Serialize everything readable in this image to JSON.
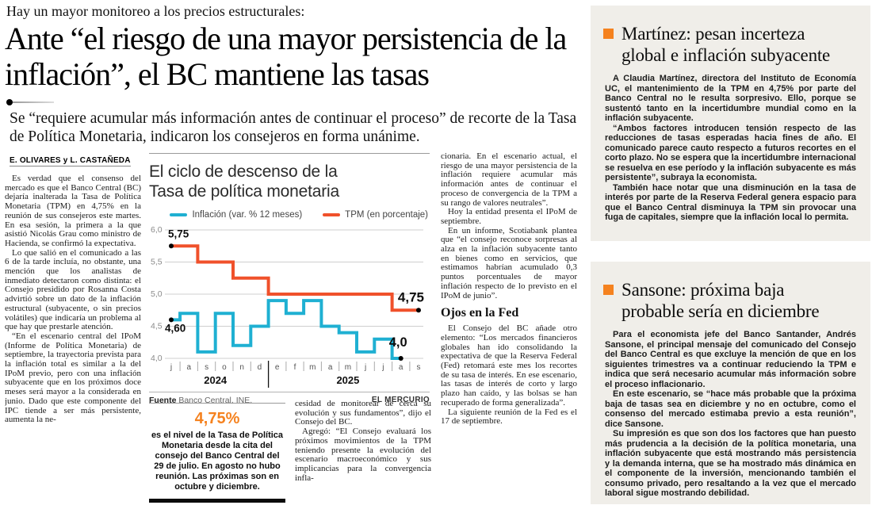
{
  "kicker": "Hay un mayor monitoreo a los precios estructurales:",
  "headline": "Ante “el riesgo de una mayor persistencia de la inflación”, el BC mantiene las tasas",
  "subheadline": "Se “requiere acumular más información antes de continuar el proceso” de recorte de la Tasa de Política Monetaria, indicaron los consejeros en forma unánime.",
  "byline": "E. OLIVARES y L. CASTAÑEDA",
  "article": {
    "col1": [
      "Es verdad que el consenso del mercado es que el Banco Central (BC) dejaría inalterada la Tasa de Política Monetaria (TPM) en 4,75% en la reunión de sus consejeros este martes. En esa sesión, la primera a la que asistió Nicolás Grau como ministro de Hacienda, se confirmó la expectativa.",
      "Lo que salió en el comunicado a las 6 de la tarde incluía, no obstante, una mención que los analistas de inmediato detectaron como distinta: el Consejo presidido por Rosanna Costa advirtió sobre un dato de la inflación estructural (subyacente, o sin precios volátiles) que indicaría un problema al que hay que prestarle atención.",
      "“En el escenario central del IPoM (Informe de Política Monetaria) de septiembre, la trayectoria prevista para la inflación total es similar a la del IPoM previo, pero con una inflación subyacente que en los próximos doce meses será mayor a la considerada en junio. Dado que este componente del IPC tiende a ser más persistente, aumenta la ne-"
    ],
    "col3": [
      "cesidad de monitorear de cerca su evolución y sus fundamentos”, dijo el Consejo del BC.",
      "Agregó: “El Consejo evaluará los próximos movimientos de la TPM teniendo presente la evolución del escenario macroeconómico y sus implicancias para la convergencia infla-"
    ],
    "col4_top": [
      "cionaria. En el escenario actual, el riesgo de una mayor persistencia de la inflación requiere acumular más información antes de continuar el proceso de convergencia de la TPM a su rango de valores neutrales”.",
      "Hoy la entidad presenta el IPoM de septiembre.",
      "En un informe, Scotiabank plantea que “el consejo reconoce sorpresas al alza en la inflación subyacente tanto en bienes como en servicios, que estimamos habrían acumulado 0,3 puntos porcentuales de mayor inflación respecto de lo previsto en el IPoM de junio”."
    ],
    "section_head": "Ojos en la Fed",
    "col4_bottom": [
      "El Consejo del BC añade otro elemento: “Los mercados financieros globales han ido consolidando la expectativa de que la Reserva Federal (Fed) retomará este mes los recortes de su tasa de interés. En ese escenario, las tasas de interés de corto y largo plazo han caído, y las bolsas se han recuperado de forma generalizada”.",
      "La siguiente reunión de la Fed es el 17 de septiembre."
    ]
  },
  "infobox": {
    "figure": "4,75%",
    "text": "es el nivel de la Tasa de Política Monetaria desde la cita del consejo del Banco Central del 29 de julio. En agosto no hubo reunión. Las próximas son en octubre y diciembre."
  },
  "chart_data": {
    "type": "line",
    "title": "El ciclo de descenso de la\nTasa de política monetaria",
    "x": [
      "j",
      "a",
      "s",
      "o",
      "n",
      "d",
      "e",
      "f",
      "m",
      "a",
      "m",
      "j",
      "j",
      "a",
      "s"
    ],
    "year_groups": [
      {
        "label": "2024",
        "from": 0,
        "to": 5
      },
      {
        "label": "2025",
        "from": 6,
        "to": 14
      }
    ],
    "ylim": [
      4.0,
      6.0
    ],
    "yticks": [
      6.0,
      5.5,
      5.0,
      4.5,
      4.0
    ],
    "ytick_labels": [
      "6,0",
      "5,5",
      "5,0",
      "4,5",
      "4,0"
    ],
    "grid": true,
    "legend_position": "top",
    "series": [
      {
        "name": "Inflación (var. % 12 meses)",
        "color": "#1fb0d2",
        "values": [
          4.6,
          4.7,
          4.1,
          4.7,
          4.2,
          4.5,
          4.9,
          4.7,
          4.9,
          4.5,
          4.4,
          4.1,
          4.3,
          4.0
        ],
        "start_label": "4,60",
        "end_label": "4,0"
      },
      {
        "name": "TPM (en porcentaje)",
        "color": "#f0512b",
        "values": [
          5.75,
          5.75,
          5.5,
          5.5,
          5.25,
          5.25,
          5.0,
          5.0,
          5.0,
          5.0,
          5.0,
          5.0,
          5.0,
          4.75,
          4.75
        ],
        "start_label": "5,75",
        "end_label": "4,75"
      }
    ],
    "source_label": "Fuente",
    "source": "Banco Central, INE.",
    "credit": "EL MERCURIO"
  },
  "sidebar": {
    "boxes": [
      {
        "headline": "Martínez: pesan incerteza\nglobal e inflación subyacente",
        "paragraphs": [
          "A Claudia Martínez, directora del Instituto de Economía UC, el mantenimiento de la TPM en 4,75% por parte del Banco Central no le resulta sorpresivo. Ello, porque se sustentó tanto en la incertidumbre mundial como en la inflación subyacente.",
          "“Ambos factores introducen tensión respecto de las reducciones de tasas esperadas hacia fines de año. El comunicado parece cauto respecto a futuros recortes en el corto plazo. No se espera que la incertidumbre internacional se resuelva en ese período y la inflación subyacente es más persistente”, subraya la economista.",
          "También hace notar que una disminución en la tasa de interés por parte de la Reserva Federal genera espacio para que el Banco Central disminuya la TPM sin provocar una fuga de capitales, siempre que la inflación local lo permita."
        ]
      },
      {
        "headline": "Sansone: próxima baja\nprobable sería en diciembre",
        "paragraphs": [
          "Para el economista jefe del Banco Santander, Andrés Sansone, el principal mensaje del comunicado del Consejo del Banco Central es que excluye la mención de que en los siguientes trimestres va a continuar reduciendo la TPM e indica que será necesario acumular más información sobre el proceso inflacionario.",
          "En este escenario, se “hace más probable que la próxima baja de tasas sea en diciembre y no en octubre, como el consenso del mercado estimaba previo a esta reunión”, dice Sansone.",
          "Su impresión es que son dos los factores que han puesto más prudencia a la decisión de la política monetaria, una inflación subyacente que está mostrando más persistencia y la demanda interna, que se ha mostrado más dinámica en el componente de la inversión, mencionando también el consumo privado, pero resaltando a la vez que el mercado laboral sigue mostrando debilidad."
        ]
      }
    ]
  },
  "colors": {
    "accent": "#f5821f",
    "sidebar_bg": "#f0eee9",
    "tpm_line": "#f0512b",
    "inflation_line": "#1fb0d2"
  }
}
